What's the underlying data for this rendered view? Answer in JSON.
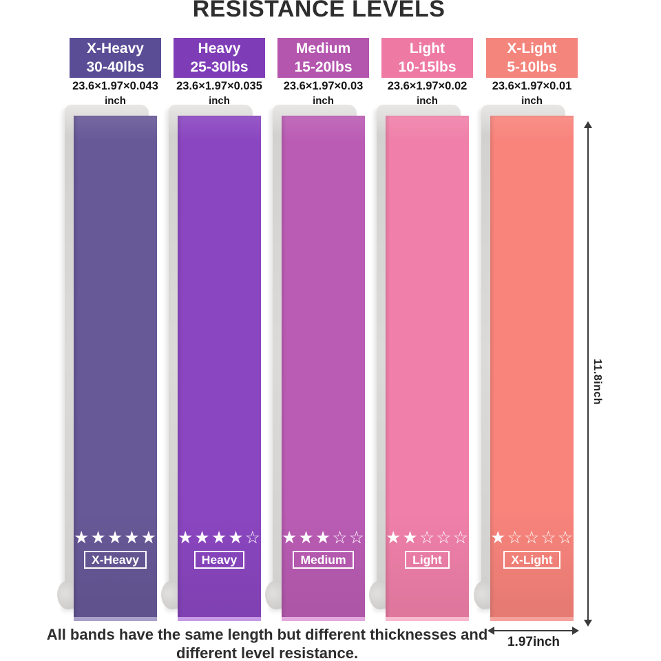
{
  "title": "RESISTANCE LEVELS",
  "caption": "All bands have the same length but different thicknesses and different level resistance.",
  "length_label": "11.8inch",
  "width_label": "1.97inch",
  "bands": [
    {
      "name": "X-Heavy",
      "weight": "30-40lbs",
      "size": "23.6×1.97×0.043",
      "unit": "inch",
      "stars": "★★★★★",
      "header_color": "#5a4d96",
      "band_color": "#675897",
      "edge_color": "#a9a1c9"
    },
    {
      "name": "Heavy",
      "weight": "25-30lbs",
      "size": "23.6×1.97×0.035",
      "unit": "inch",
      "stars": "★★★★☆",
      "header_color": "#7e3db7",
      "band_color": "#8a46c0",
      "edge_color": "#c79ae6"
    },
    {
      "name": "Medium",
      "weight": "15-20lbs",
      "size": "23.6×1.97×0.03",
      "unit": "inch",
      "stars": "★★★☆☆",
      "header_color": "#b455ae",
      "band_color": "#ba5cb4",
      "edge_color": "#e3a8de"
    },
    {
      "name": "Light",
      "weight": "10-15lbs",
      "size": "23.6×1.97×0.02",
      "unit": "inch",
      "stars": "★★☆☆☆",
      "header_color": "#ee7aa4",
      "band_color": "#f080a9",
      "edge_color": "#f7bace"
    },
    {
      "name": "X-Light",
      "weight": "5-10lbs",
      "size": "23.6×1.97×0.01",
      "unit": "inch",
      "stars": "★☆☆☆☆",
      "header_color": "#f4857c",
      "band_color": "#f8847c",
      "edge_color": "#f4a29b"
    }
  ]
}
